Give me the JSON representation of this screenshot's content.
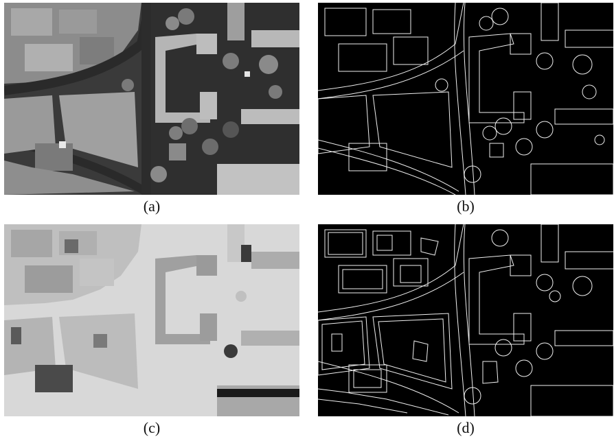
{
  "figure": {
    "panels": [
      {
        "id": "a",
        "caption": "(a)",
        "kind": "grayscale-aerial-image"
      },
      {
        "id": "b",
        "caption": "(b)",
        "kind": "edge-map"
      },
      {
        "id": "c",
        "caption": "(c)",
        "kind": "inverted-aerial-image"
      },
      {
        "id": "d",
        "caption": "(d)",
        "kind": "dense-edge-map"
      }
    ]
  }
}
